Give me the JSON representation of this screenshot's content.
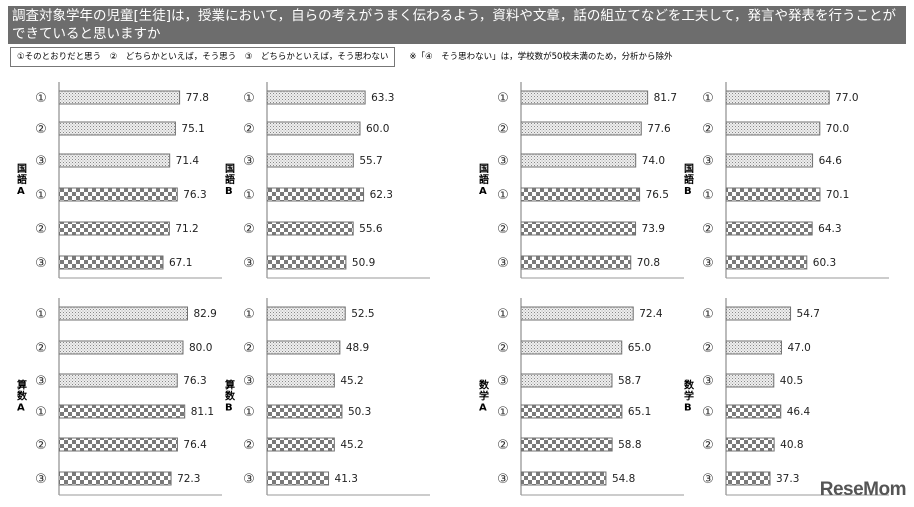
{
  "header": {
    "title": "調査対象学年の児童[生徒]は，授業において，自らの考えがうまく伝わるよう，資料や文章，話の組立てなどを工夫して，発言や発表を行うことができていると思いますか"
  },
  "legend": {
    "text": "①そのとおりだと思う　②　どちらかといえば，そう思う　③　どちらかといえば，そう思わない"
  },
  "note": "※「④　そう思わない」は，学校数が50校未満のため，分析から除外",
  "logo": "ReseMom",
  "colors": {
    "header_bg": "#6d6d6d",
    "bar_border": "#707070",
    "pattern_dark": "#7a7a7a"
  },
  "chart_data": [
    {
      "type": "bar",
      "orientation": "horizontal",
      "subject": "国語A",
      "categories": [
        "①",
        "②",
        "③",
        "①",
        "②",
        "③"
      ],
      "values": [
        77.8,
        75.1,
        71.4,
        76.3,
        71.2,
        67.1
      ],
      "patterns": [
        "dotted",
        "dotted",
        "dotted",
        "checkered",
        "checkered",
        "checkered"
      ]
    },
    {
      "type": "bar",
      "orientation": "horizontal",
      "subject": "国語B",
      "categories": [
        "①",
        "②",
        "③",
        "①",
        "②",
        "③"
      ],
      "values": [
        63.3,
        60.0,
        55.7,
        62.3,
        55.6,
        50.9
      ],
      "patterns": [
        "dotted",
        "dotted",
        "dotted",
        "checkered",
        "checkered",
        "checkered"
      ]
    },
    {
      "type": "bar",
      "orientation": "horizontal",
      "subject": "国語A",
      "categories": [
        "①",
        "②",
        "③",
        "①",
        "②",
        "③"
      ],
      "values": [
        81.7,
        77.6,
        74.0,
        76.5,
        73.9,
        70.8
      ],
      "patterns": [
        "dotted",
        "dotted",
        "dotted",
        "checkered",
        "checkered",
        "checkered"
      ]
    },
    {
      "type": "bar",
      "orientation": "horizontal",
      "subject": "国語B",
      "categories": [
        "①",
        "②",
        "③",
        "①",
        "②",
        "③"
      ],
      "values": [
        77.0,
        70.0,
        64.6,
        70.1,
        64.3,
        60.3
      ],
      "patterns": [
        "dotted",
        "dotted",
        "dotted",
        "checkered",
        "checkered",
        "checkered"
      ]
    },
    {
      "type": "bar",
      "orientation": "horizontal",
      "subject": "算数A",
      "categories": [
        "①",
        "②",
        "③",
        "①",
        "②",
        "③"
      ],
      "values": [
        82.9,
        80.0,
        76.3,
        81.1,
        76.4,
        72.3
      ],
      "patterns": [
        "dotted",
        "dotted",
        "dotted",
        "checkered",
        "checkered",
        "checkered"
      ]
    },
    {
      "type": "bar",
      "orientation": "horizontal",
      "subject": "算数B",
      "categories": [
        "①",
        "②",
        "③",
        "①",
        "②",
        "③"
      ],
      "values": [
        52.5,
        48.9,
        45.2,
        50.3,
        45.2,
        41.3
      ],
      "patterns": [
        "dotted",
        "dotted",
        "dotted",
        "checkered",
        "checkered",
        "checkered"
      ]
    },
    {
      "type": "bar",
      "orientation": "horizontal",
      "subject": "数学A",
      "categories": [
        "①",
        "②",
        "③",
        "①",
        "②",
        "③"
      ],
      "values": [
        72.4,
        65.0,
        58.7,
        65.1,
        58.8,
        54.8
      ],
      "patterns": [
        "dotted",
        "dotted",
        "dotted",
        "checkered",
        "checkered",
        "checkered"
      ]
    },
    {
      "type": "bar",
      "orientation": "horizontal",
      "subject": "数学B",
      "categories": [
        "①",
        "②",
        "③",
        "①",
        "②",
        "③"
      ],
      "values": [
        54.7,
        47.0,
        40.5,
        46.4,
        40.8,
        37.3
      ],
      "patterns": [
        "dotted",
        "dotted",
        "dotted",
        "checkered",
        "checkered",
        "checkered"
      ]
    }
  ]
}
